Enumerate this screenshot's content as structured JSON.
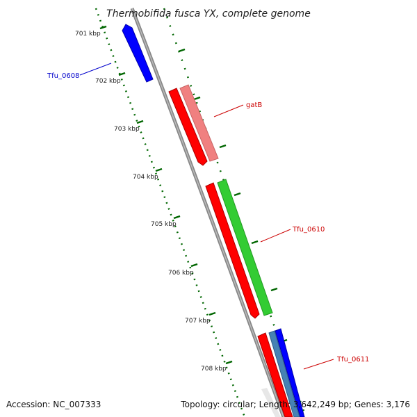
{
  "title": "Thermobifida fusca YX, complete genome",
  "footer": {
    "accession": "Accession: NC_007333",
    "summary": "Topology: circular; Length: 3,642,249 bp; Genes: 3,176"
  },
  "scale_ticks": [
    "701 kbp",
    "702 kbp",
    "703 kbp",
    "704 kbp",
    "705 kbp",
    "706 kbp",
    "707 kbp",
    "708 kbp"
  ],
  "features": [
    {
      "label": "Tfu_0608",
      "strand": "reverse",
      "color": "#0000ff"
    },
    {
      "label": "gatB",
      "strand": "forward",
      "color": "#ff0000"
    },
    {
      "label": "Tfu_0610",
      "strand": "forward",
      "color": "#ff0000"
    },
    {
      "label": "Tfu_0611",
      "strand": "forward",
      "color": "#ff0000"
    }
  ],
  "colors": {
    "backbone": "#888888",
    "tick": "#006600",
    "reverse_label": "#0000cc",
    "forward_label": "#cc0000",
    "pink_track": "#f08080",
    "green_track": "#33cc33",
    "blue_track": "#0000ff",
    "steel_track": "#4682b4"
  }
}
